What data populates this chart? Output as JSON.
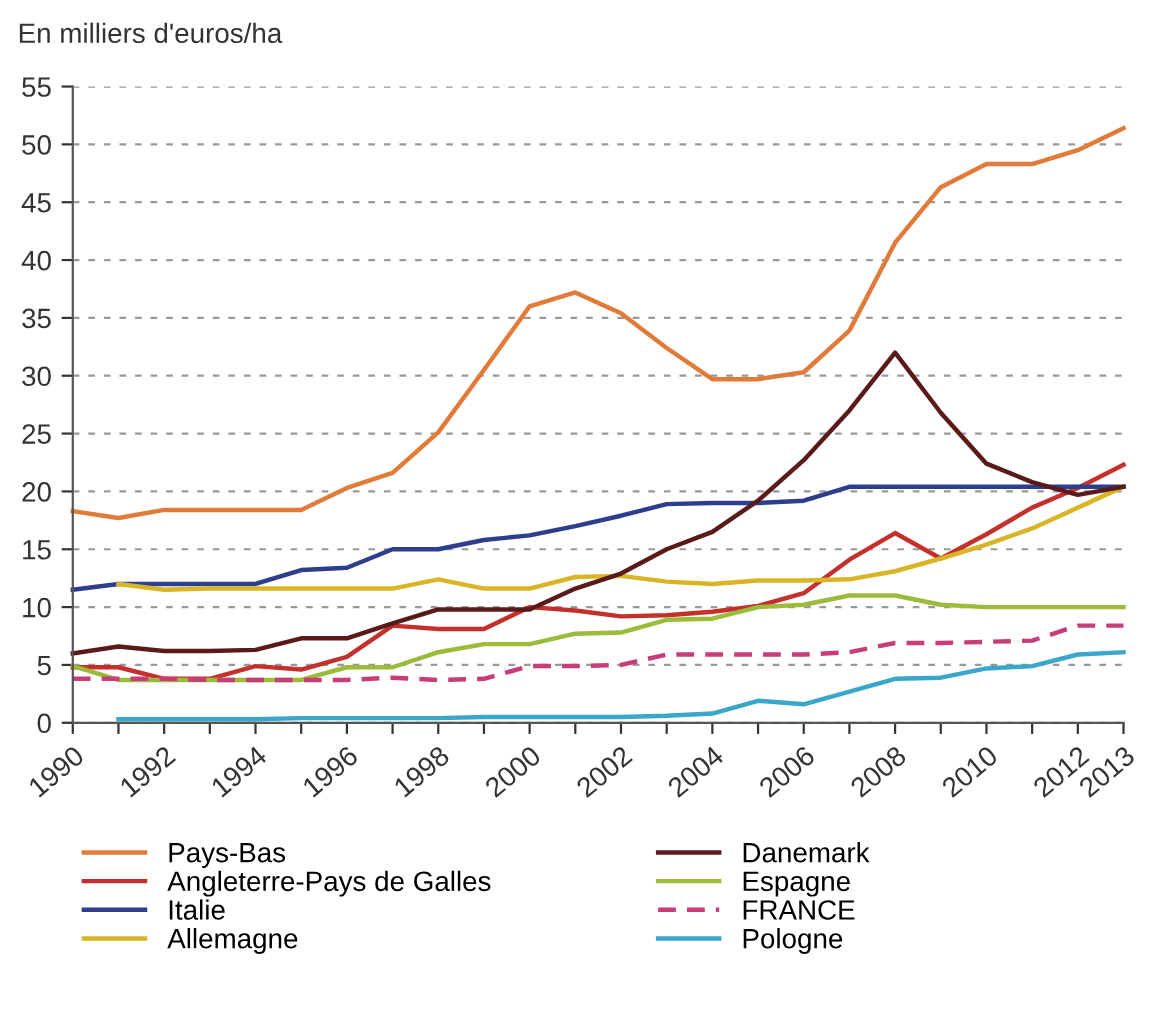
{
  "chart_data": {
    "type": "line",
    "ylabel": "En milliers d'euros/ha",
    "x": [
      1990,
      1991,
      1992,
      1993,
      1994,
      1995,
      1996,
      1997,
      1998,
      1999,
      2000,
      2001,
      2002,
      2003,
      2004,
      2005,
      2006,
      2007,
      2008,
      2009,
      2010,
      2011,
      2012,
      2013
    ],
    "series": [
      {
        "name": "Pays-Bas",
        "color": "#e07b39",
        "values": [
          18.3,
          17.7,
          18.4,
          18.4,
          18.4,
          18.4,
          20.3,
          21.6,
          25.1,
          30.5,
          36,
          37.2,
          35.4,
          32.4,
          29.7,
          29.7,
          30.3,
          33.9,
          41.5,
          46.3,
          48.3,
          48.3,
          49.5,
          51.4
        ]
      },
      {
        "name": "Angleterre-Pays de Galles",
        "color": "#c4302b",
        "values": [
          4.8,
          4.8,
          3.8,
          3.8,
          4.9,
          4.6,
          5.7,
          8.4,
          8.1,
          8.1,
          10,
          9.7,
          9.2,
          9.3,
          9.6,
          10.1,
          11.2,
          14.1,
          16.4,
          14.2,
          16.3,
          18.6,
          20.3,
          22.3
        ]
      },
      {
        "name": "Italie",
        "color": "#2c3e8c",
        "values": [
          11.5,
          12,
          12,
          12,
          12,
          13.2,
          13.4,
          15,
          15,
          15.8,
          16.2,
          17,
          17.9,
          18.9,
          19,
          19,
          19.2,
          20.4,
          20.4,
          20.4,
          20.4,
          20.4,
          20.4,
          20.4
        ]
      },
      {
        "name": "Allemagne",
        "color": "#d9b526",
        "values": [
          null,
          12,
          11.5,
          11.6,
          11.6,
          11.6,
          11.6,
          11.6,
          12.4,
          11.6,
          11.6,
          12.6,
          12.7,
          12.2,
          12,
          12.3,
          12.3,
          12.4,
          13.1,
          14.2,
          15.4,
          16.8,
          18.6,
          20.4
        ]
      },
      {
        "name": "Danemark",
        "color": "#5a1a1a",
        "values": [
          6,
          6.6,
          6.2,
          6.2,
          6.3,
          7.3,
          7.3,
          8.6,
          9.8,
          9.8,
          9.8,
          11.6,
          12.9,
          15,
          16.5,
          19.2,
          22.7,
          27,
          32,
          26.8,
          22.4,
          20.8,
          19.7,
          20.4
        ]
      },
      {
        "name": "Espagne",
        "color": "#9bbb3a",
        "values": [
          4.9,
          3.7,
          3.7,
          3.7,
          3.7,
          3.7,
          4.8,
          4.8,
          6.1,
          6.8,
          6.8,
          7.7,
          7.8,
          8.9,
          9,
          10,
          10.2,
          11,
          11,
          10.2,
          10,
          10,
          10,
          10
        ]
      },
      {
        "name": "FRANCE",
        "color": "#c83c78",
        "line_style": "dashed",
        "values": [
          3.8,
          3.8,
          3.8,
          3.7,
          3.7,
          3.7,
          3.7,
          3.9,
          3.7,
          3.8,
          4.9,
          4.9,
          5,
          5.9,
          5.9,
          5.9,
          5.9,
          6.1,
          6.9,
          6.9,
          7,
          7.1,
          8.4,
          8.4
        ]
      },
      {
        "name": "Pologne",
        "color": "#3aa6c8",
        "values": [
          null,
          0.3,
          0.3,
          0.3,
          0.3,
          0.4,
          0.4,
          0.4,
          0.4,
          0.5,
          0.5,
          0.5,
          0.5,
          0.6,
          0.8,
          1.9,
          1.6,
          2.7,
          3.8,
          3.9,
          4.7,
          4.9,
          5.9,
          6.1
        ]
      }
    ],
    "xlim": [
      1990,
      2013
    ],
    "xticks": [
      1990,
      {
        "value": 1991,
        "label": null
      },
      1992,
      {
        "value": 1993,
        "label": null
      },
      1994,
      {
        "value": 1995,
        "label": null
      },
      1996,
      {
        "value": 1997,
        "label": null
      },
      1998,
      {
        "value": 1999,
        "label": null
      },
      2000,
      {
        "value": 2001,
        "label": null
      },
      2002,
      {
        "value": 2003,
        "label": null
      },
      2004,
      {
        "value": 2005,
        "label": null
      },
      2006,
      {
        "value": 2007,
        "label": null
      },
      2008,
      {
        "value": 2009,
        "label": null
      },
      2010,
      {
        "value": 2011,
        "label": null
      },
      2012,
      2013
    ],
    "ylim": [
      0,
      55
    ],
    "yticks": [
      0,
      5,
      10,
      15,
      20,
      25,
      30,
      35,
      40,
      45,
      50,
      55
    ],
    "grid": "y",
    "legend": "bottom",
    "line_style": "solid",
    "marker": "none"
  }
}
